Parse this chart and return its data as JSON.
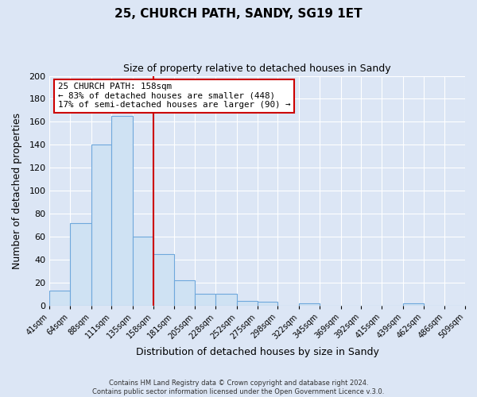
{
  "title1": "25, CHURCH PATH, SANDY, SG19 1ET",
  "title2": "Size of property relative to detached houses in Sandy",
  "xlabel": "Distribution of detached houses by size in Sandy",
  "ylabel": "Number of detached properties",
  "bin_labels": [
    "41sqm",
    "64sqm",
    "88sqm",
    "111sqm",
    "135sqm",
    "158sqm",
    "181sqm",
    "205sqm",
    "228sqm",
    "252sqm",
    "275sqm",
    "298sqm",
    "322sqm",
    "345sqm",
    "369sqm",
    "392sqm",
    "415sqm",
    "439sqm",
    "462sqm",
    "486sqm",
    "509sqm"
  ],
  "bin_edges": [
    41,
    64,
    88,
    111,
    135,
    158,
    181,
    205,
    228,
    252,
    275,
    298,
    322,
    345,
    369,
    392,
    415,
    439,
    462,
    486,
    509
  ],
  "bar_heights": [
    13,
    72,
    140,
    165,
    60,
    45,
    22,
    10,
    10,
    4,
    3,
    0,
    2,
    0,
    0,
    0,
    0,
    2,
    0,
    0,
    0
  ],
  "bar_color": "#cfe2f3",
  "bar_edge_color": "#6fa8dc",
  "property_line_x": 158,
  "property_line_color": "#cc0000",
  "annotation_title": "25 CHURCH PATH: 158sqm",
  "annotation_line1": "← 83% of detached houses are smaller (448)",
  "annotation_line2": "17% of semi-detached houses are larger (90) →",
  "annotation_box_facecolor": "#ffffff",
  "annotation_box_edgecolor": "#cc0000",
  "ylim": [
    0,
    200
  ],
  "yticks": [
    0,
    20,
    40,
    60,
    80,
    100,
    120,
    140,
    160,
    180,
    200
  ],
  "grid_color": "#ffffff",
  "bg_color": "#dce6f5",
  "footer1": "Contains HM Land Registry data © Crown copyright and database right 2024.",
  "footer2": "Contains public sector information licensed under the Open Government Licence v.3.0."
}
